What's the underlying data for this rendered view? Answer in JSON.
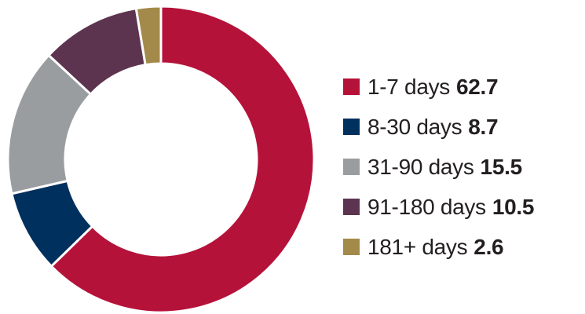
{
  "chart_data": {
    "type": "pie",
    "variant": "donut",
    "categories": [
      "1-7 days",
      "8-30 days",
      "31-90 days",
      "91-180 days",
      "181+ days"
    ],
    "values": [
      62.7,
      8.7,
      15.5,
      10.5,
      2.6
    ],
    "colors": [
      "#b5123a",
      "#00305e",
      "#999da0",
      "#5c344f",
      "#a38a4a"
    ],
    "title": "",
    "legend_position": "right"
  }
}
